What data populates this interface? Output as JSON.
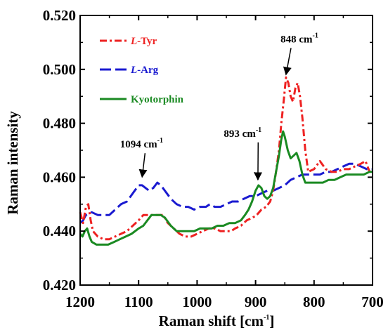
{
  "chart_data": {
    "type": "line",
    "title": "",
    "xlabel": "Raman shift [cm",
    "xlabel_sup": "-1",
    "xlabel_end": "]",
    "ylabel": "Raman intensity",
    "xlim": [
      1200,
      700
    ],
    "ylim": [
      0.42,
      0.52
    ],
    "x_reversed": true,
    "grid": false,
    "legend_position": "top-left",
    "x_ticks": [
      1200,
      1100,
      1000,
      900,
      800,
      700
    ],
    "x_tick_labels": [
      "1200",
      "1100",
      "1000",
      "900",
      "800",
      "700"
    ],
    "y_ticks": [
      0.42,
      0.44,
      0.46,
      0.48,
      0.5,
      0.52
    ],
    "y_tick_labels": [
      "0.420",
      "0.440",
      "0.460",
      "0.480",
      "0.500",
      "0.520"
    ],
    "series": [
      {
        "name_prefix": "L",
        "name_suffix": "-Tyr",
        "color": "#ee2222",
        "dash": "dash-dot",
        "points": [
          [
            1200,
            0.447
          ],
          [
            1195,
            0.443
          ],
          [
            1190,
            0.449
          ],
          [
            1186,
            0.45
          ],
          [
            1182,
            0.444
          ],
          [
            1178,
            0.44
          ],
          [
            1170,
            0.438
          ],
          [
            1160,
            0.437
          ],
          [
            1150,
            0.437
          ],
          [
            1140,
            0.438
          ],
          [
            1130,
            0.439
          ],
          [
            1120,
            0.44
          ],
          [
            1110,
            0.442
          ],
          [
            1100,
            0.444
          ],
          [
            1092,
            0.446
          ],
          [
            1085,
            0.446
          ],
          [
            1075,
            0.446
          ],
          [
            1065,
            0.446
          ],
          [
            1058,
            0.446
          ],
          [
            1050,
            0.443
          ],
          [
            1040,
            0.441
          ],
          [
            1030,
            0.439
          ],
          [
            1020,
            0.438
          ],
          [
            1010,
            0.438
          ],
          [
            1000,
            0.439
          ],
          [
            990,
            0.44
          ],
          [
            980,
            0.441
          ],
          [
            970,
            0.441
          ],
          [
            960,
            0.44
          ],
          [
            950,
            0.44
          ],
          [
            942,
            0.44
          ],
          [
            935,
            0.441
          ],
          [
            925,
            0.442
          ],
          [
            915,
            0.444
          ],
          [
            905,
            0.445
          ],
          [
            898,
            0.446
          ],
          [
            890,
            0.448
          ],
          [
            882,
            0.449
          ],
          [
            875,
            0.451
          ],
          [
            870,
            0.455
          ],
          [
            865,
            0.462
          ],
          [
            860,
            0.47
          ],
          [
            856,
            0.48
          ],
          [
            852,
            0.488
          ],
          [
            848,
            0.497
          ],
          [
            844,
            0.495
          ],
          [
            840,
            0.49
          ],
          [
            836,
            0.488
          ],
          [
            832,
            0.493
          ],
          [
            828,
            0.495
          ],
          [
            824,
            0.49
          ],
          [
            820,
            0.482
          ],
          [
            815,
            0.47
          ],
          [
            810,
            0.462
          ],
          [
            800,
            0.463
          ],
          [
            790,
            0.466
          ],
          [
            780,
            0.463
          ],
          [
            770,
            0.462
          ],
          [
            760,
            0.462
          ],
          [
            750,
            0.463
          ],
          [
            740,
            0.463
          ],
          [
            730,
            0.464
          ],
          [
            720,
            0.465
          ],
          [
            712,
            0.466
          ],
          [
            705,
            0.462
          ],
          [
            700,
            0.463
          ]
        ]
      },
      {
        "name_prefix": "L",
        "name_suffix": "-Arg",
        "color": "#1a1ad0",
        "dash": "long-dash",
        "points": [
          [
            1200,
            0.443
          ],
          [
            1195,
            0.444
          ],
          [
            1190,
            0.446
          ],
          [
            1180,
            0.447
          ],
          [
            1170,
            0.446
          ],
          [
            1160,
            0.446
          ],
          [
            1150,
            0.446
          ],
          [
            1140,
            0.448
          ],
          [
            1130,
            0.45
          ],
          [
            1120,
            0.451
          ],
          [
            1110,
            0.454
          ],
          [
            1100,
            0.457
          ],
          [
            1094,
            0.457
          ],
          [
            1088,
            0.456
          ],
          [
            1082,
            0.455
          ],
          [
            1075,
            0.456
          ],
          [
            1068,
            0.458
          ],
          [
            1062,
            0.457
          ],
          [
            1055,
            0.455
          ],
          [
            1045,
            0.452
          ],
          [
            1035,
            0.45
          ],
          [
            1025,
            0.449
          ],
          [
            1015,
            0.449
          ],
          [
            1005,
            0.448
          ],
          [
            995,
            0.449
          ],
          [
            985,
            0.449
          ],
          [
            978,
            0.45
          ],
          [
            970,
            0.449
          ],
          [
            960,
            0.449
          ],
          [
            950,
            0.45
          ],
          [
            940,
            0.451
          ],
          [
            930,
            0.451
          ],
          [
            920,
            0.452
          ],
          [
            910,
            0.453
          ],
          [
            900,
            0.453
          ],
          [
            890,
            0.454
          ],
          [
            880,
            0.455
          ],
          [
            870,
            0.455
          ],
          [
            860,
            0.456
          ],
          [
            850,
            0.457
          ],
          [
            840,
            0.459
          ],
          [
            830,
            0.46
          ],
          [
            820,
            0.461
          ],
          [
            810,
            0.461
          ],
          [
            800,
            0.461
          ],
          [
            790,
            0.461
          ],
          [
            780,
            0.462
          ],
          [
            770,
            0.462
          ],
          [
            760,
            0.463
          ],
          [
            750,
            0.464
          ],
          [
            740,
            0.465
          ],
          [
            730,
            0.465
          ],
          [
            720,
            0.464
          ],
          [
            710,
            0.463
          ],
          [
            700,
            0.463
          ]
        ]
      },
      {
        "name": "Kyotorphin",
        "color": "#1a8a22",
        "dash": "solid",
        "points": [
          [
            1200,
            0.439
          ],
          [
            1196,
            0.438
          ],
          [
            1192,
            0.44
          ],
          [
            1188,
            0.441
          ],
          [
            1184,
            0.438
          ],
          [
            1180,
            0.436
          ],
          [
            1172,
            0.435
          ],
          [
            1162,
            0.435
          ],
          [
            1152,
            0.435
          ],
          [
            1142,
            0.436
          ],
          [
            1132,
            0.437
          ],
          [
            1122,
            0.438
          ],
          [
            1112,
            0.439
          ],
          [
            1100,
            0.441
          ],
          [
            1092,
            0.442
          ],
          [
            1085,
            0.444
          ],
          [
            1078,
            0.446
          ],
          [
            1070,
            0.446
          ],
          [
            1062,
            0.446
          ],
          [
            1055,
            0.445
          ],
          [
            1045,
            0.442
          ],
          [
            1035,
            0.44
          ],
          [
            1025,
            0.44
          ],
          [
            1015,
            0.44
          ],
          [
            1005,
            0.44
          ],
          [
            995,
            0.441
          ],
          [
            985,
            0.441
          ],
          [
            975,
            0.441
          ],
          [
            965,
            0.442
          ],
          [
            955,
            0.442
          ],
          [
            945,
            0.443
          ],
          [
            935,
            0.443
          ],
          [
            925,
            0.444
          ],
          [
            918,
            0.446
          ],
          [
            912,
            0.448
          ],
          [
            906,
            0.451
          ],
          [
            900,
            0.455
          ],
          [
            895,
            0.457
          ],
          [
            890,
            0.456
          ],
          [
            885,
            0.453
          ],
          [
            880,
            0.452
          ],
          [
            875,
            0.453
          ],
          [
            870,
            0.456
          ],
          [
            865,
            0.462
          ],
          [
            860,
            0.468
          ],
          [
            856,
            0.474
          ],
          [
            853,
            0.477
          ],
          [
            850,
            0.475
          ],
          [
            845,
            0.47
          ],
          [
            840,
            0.467
          ],
          [
            835,
            0.468
          ],
          [
            830,
            0.469
          ],
          [
            825,
            0.466
          ],
          [
            820,
            0.461
          ],
          [
            815,
            0.458
          ],
          [
            805,
            0.458
          ],
          [
            795,
            0.458
          ],
          [
            785,
            0.458
          ],
          [
            775,
            0.459
          ],
          [
            765,
            0.459
          ],
          [
            755,
            0.46
          ],
          [
            745,
            0.461
          ],
          [
            735,
            0.461
          ],
          [
            725,
            0.461
          ],
          [
            715,
            0.461
          ],
          [
            705,
            0.462
          ],
          [
            700,
            0.462
          ]
        ]
      }
    ],
    "annotations": [
      {
        "text": "848 cm",
        "sup": "-1",
        "tip": [
          848,
          0.497
        ],
        "label_at": [
          825,
          0.51
        ]
      },
      {
        "text": "1094 cm",
        "sup": "-1",
        "tip": [
          1094,
          0.459
        ],
        "label_at": [
          1095,
          0.471
        ]
      },
      {
        "text": "893 cm",
        "sup": "-1",
        "tip": [
          896,
          0.458
        ],
        "label_at": [
          922,
          0.475
        ]
      }
    ]
  }
}
